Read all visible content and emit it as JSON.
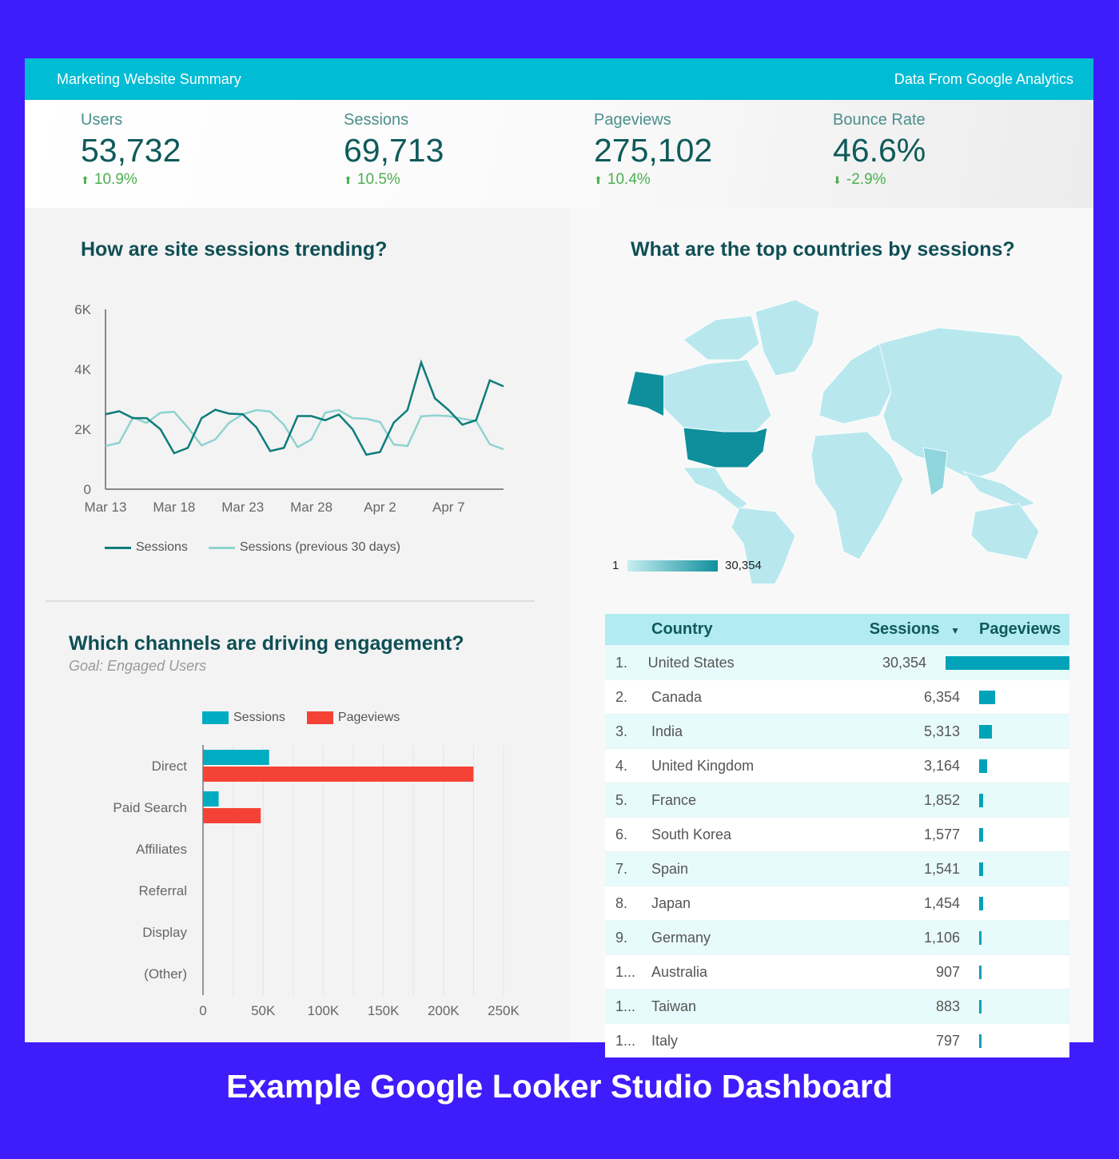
{
  "header": {
    "title": "Marketing Website Summary",
    "source": "Data From Google Analytics"
  },
  "kpis": [
    {
      "label": "Users",
      "value": "53,732",
      "delta": "10.9%",
      "dir": "up"
    },
    {
      "label": "Sessions",
      "value": "69,713",
      "delta": "10.5%",
      "dir": "up"
    },
    {
      "label": "Pageviews",
      "value": "275,102",
      "delta": "10.4%",
      "dir": "up"
    },
    {
      "label": "Bounce Rate",
      "value": "46.6%",
      "delta": "-2.9%",
      "dir": "down"
    }
  ],
  "icons": {
    "up": "arrow-up-icon",
    "down": "arrow-down-icon",
    "sort": "sort-desc-icon"
  },
  "colors": {
    "header": "#00bcd4",
    "sessions_line": "#0e7c7b",
    "prev_line": "#8fd3d0",
    "bar_sessions": "#00acc1",
    "bar_pageviews": "#f44336",
    "map_low": "#c8eef3",
    "map_high": "#0e8f9b"
  },
  "trend": {
    "title": "How are site sessions trending?"
  },
  "channels": {
    "title": "Which channels are driving engagement?",
    "subtitle": "Goal: Engaged Users"
  },
  "map": {
    "title": "What are the top countries by sessions?",
    "legend_min": "1",
    "legend_max": "30,354"
  },
  "chart_data": [
    {
      "type": "line",
      "title": "How are site sessions trending?",
      "x_ticks": [
        "Mar 13",
        "Mar 18",
        "Mar 23",
        "Mar 28",
        "Apr 2",
        "Apr 7"
      ],
      "y_ticks": [
        "0",
        "2K",
        "4K",
        "6K"
      ],
      "ylim": [
        0,
        6000
      ],
      "x": [
        "Mar 13",
        "Mar 14",
        "Mar 15",
        "Mar 16",
        "Mar 17",
        "Mar 18",
        "Mar 19",
        "Mar 20",
        "Mar 21",
        "Mar 22",
        "Mar 23",
        "Mar 24",
        "Mar 25",
        "Mar 26",
        "Mar 27",
        "Mar 28",
        "Mar 29",
        "Mar 30",
        "Mar 31",
        "Apr 1",
        "Apr 2",
        "Apr 3",
        "Apr 4",
        "Apr 5",
        "Apr 6",
        "Apr 7",
        "Apr 8",
        "Apr 9",
        "Apr 10",
        "Apr 11"
      ],
      "series": [
        {
          "name": "Sessions",
          "values": [
            2500,
            2600,
            2370,
            2370,
            2000,
            1200,
            1380,
            2370,
            2650,
            2520,
            2500,
            2060,
            1270,
            1380,
            2440,
            2440,
            2300,
            2490,
            2000,
            1150,
            1240,
            2220,
            2640,
            4230,
            3030,
            2640,
            2150,
            2300,
            3630,
            3430
          ]
        },
        {
          "name": "Sessions (previous 30 days)",
          "values": [
            1440,
            1550,
            2390,
            2210,
            2550,
            2580,
            2060,
            1460,
            1660,
            2210,
            2500,
            2640,
            2590,
            2150,
            1400,
            1660,
            2550,
            2640,
            2370,
            2350,
            2240,
            1490,
            1440,
            2430,
            2460,
            2440,
            2350,
            2280,
            1500,
            1330
          ]
        }
      ],
      "legend": "bottom"
    },
    {
      "type": "bar",
      "title": "Which channels are driving engagement?",
      "orientation": "horizontal",
      "categories": [
        "Direct",
        "Paid Search",
        "Affiliates",
        "Referral",
        "Display",
        "(Other)"
      ],
      "series": [
        {
          "name": "Sessions",
          "values": [
            55000,
            13000,
            0,
            0,
            0,
            0
          ]
        },
        {
          "name": "Pageviews",
          "values": [
            225000,
            48000,
            0,
            0,
            0,
            0
          ]
        }
      ],
      "x_ticks": [
        "0",
        "50K",
        "100K",
        "150K",
        "200K",
        "250K"
      ],
      "xlim": [
        0,
        250000
      ],
      "legend": "top"
    }
  ],
  "table": {
    "headers": {
      "country": "Country",
      "sessions": "Sessions",
      "pageviews": "Pageviews"
    },
    "rows": [
      {
        "rank": "1.",
        "country": "United States",
        "sessions": "30,354",
        "pv": 1.0
      },
      {
        "rank": "2.",
        "country": "Canada",
        "sessions": "6,354",
        "pv": 0.13
      },
      {
        "rank": "3.",
        "country": "India",
        "sessions": "5,313",
        "pv": 0.1
      },
      {
        "rank": "4.",
        "country": "United Kingdom",
        "sessions": "3,164",
        "pv": 0.065
      },
      {
        "rank": "5.",
        "country": "France",
        "sessions": "1,852",
        "pv": 0.035
      },
      {
        "rank": "6.",
        "country": "South Korea",
        "sessions": "1,577",
        "pv": 0.033
      },
      {
        "rank": "7.",
        "country": "Spain",
        "sessions": "1,541",
        "pv": 0.03
      },
      {
        "rank": "8.",
        "country": "Japan",
        "sessions": "1,454",
        "pv": 0.03
      },
      {
        "rank": "9.",
        "country": "Germany",
        "sessions": "1,106",
        "pv": 0.022
      },
      {
        "rank": "1...",
        "country": "Australia",
        "sessions": "907",
        "pv": 0.02
      },
      {
        "rank": "1...",
        "country": "Taiwan",
        "sessions": "883",
        "pv": 0.02
      },
      {
        "rank": "1...",
        "country": "Italy",
        "sessions": "797",
        "pv": 0.016
      }
    ]
  },
  "caption": "Example Google Looker Studio Dashboard"
}
